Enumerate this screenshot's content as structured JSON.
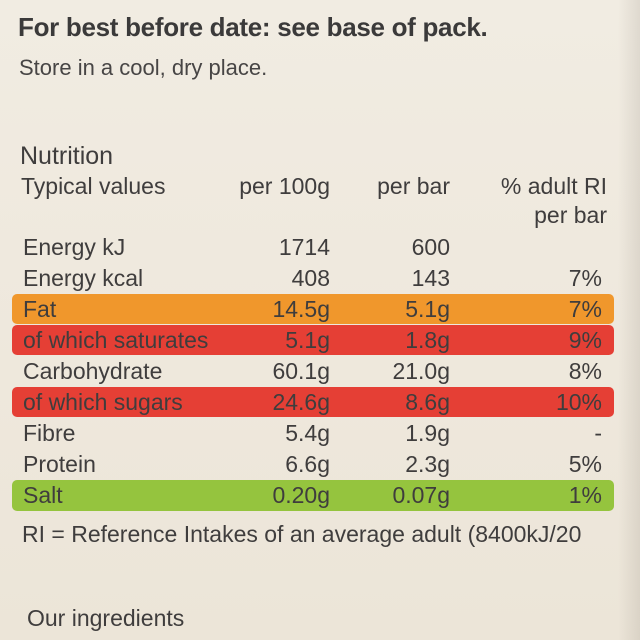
{
  "header": {
    "title": "For best before date: see base of pack.",
    "storage": "Store in a cool, dry place."
  },
  "nutrition": {
    "heading": "Nutrition",
    "columns": {
      "label": "Typical values",
      "per100g": "per 100g",
      "perbar": "per bar",
      "ri_line1": "% adult RI",
      "ri_line2": "per bar"
    },
    "rows": [
      {
        "name": "Energy kJ",
        "per100g": "1714",
        "perbar": "600",
        "ri": ""
      },
      {
        "name": "Energy kcal",
        "per100g": "408",
        "perbar": "143",
        "ri": "7%"
      },
      {
        "name": "Fat",
        "per100g": "14.5g",
        "perbar": "5.1g",
        "ri": "7%",
        "highlight": "#f0972c"
      },
      {
        "name": "of which saturates",
        "per100g": "5.1g",
        "perbar": "1.8g",
        "ri": "9%",
        "highlight": "#e53f35"
      },
      {
        "name": "Carbohydrate",
        "per100g": "60.1g",
        "perbar": "21.0g",
        "ri": "8%"
      },
      {
        "name": "of which sugars",
        "per100g": "24.6g",
        "perbar": "8.6g",
        "ri": "10%",
        "highlight": "#e53f35"
      },
      {
        "name": "Fibre",
        "per100g": "5.4g",
        "perbar": "1.9g",
        "ri": "-"
      },
      {
        "name": "Protein",
        "per100g": "6.6g",
        "perbar": "2.3g",
        "ri": "5%"
      },
      {
        "name": "Salt",
        "per100g": "0.20g",
        "perbar": "0.07g",
        "ri": "1%",
        "highlight": "#95c43e"
      }
    ],
    "footnote": "RI = Reference Intakes of an average adult (8400kJ/20"
  },
  "ingredients_heading": "Our ingredients"
}
